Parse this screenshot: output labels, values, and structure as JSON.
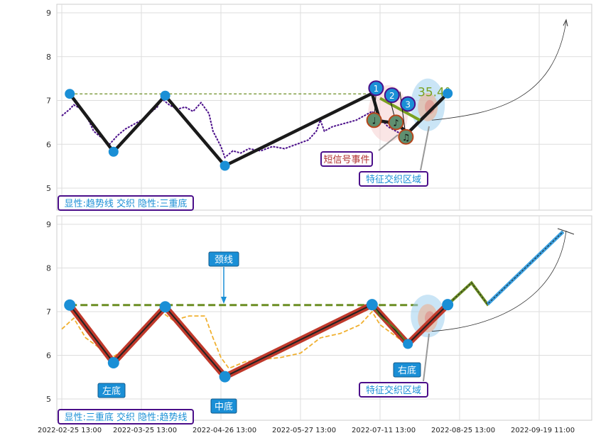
{
  "chart_data": [
    {
      "type": "line",
      "panel": "top",
      "ylim": [
        4.5,
        9.2
      ],
      "yticks": [
        5,
        6,
        7,
        8,
        9
      ],
      "grid": true,
      "xtick_labels": [
        "2022-02-25 13:00",
        "2022-03-25 13:00",
        "2022-04-26 13:00",
        "2022-05-27 13:00",
        "2022-07-11 13:00",
        "2022-08-25 13:00",
        "2022-09-19 11:00"
      ],
      "price_color": "#4b0f8a",
      "price": [
        [
          0,
          6.65
        ],
        [
          2,
          6.8
        ],
        [
          3,
          6.9
        ],
        [
          5,
          6.8
        ],
        [
          7,
          6.5
        ],
        [
          8,
          6.3
        ],
        [
          10,
          6.15
        ],
        [
          12,
          6.0
        ],
        [
          14,
          6.2
        ],
        [
          16,
          6.35
        ],
        [
          18,
          6.45
        ],
        [
          20,
          6.55
        ],
        [
          22,
          6.7
        ],
        [
          24,
          6.85
        ],
        [
          25,
          7.05
        ],
        [
          27,
          6.9
        ],
        [
          29,
          6.8
        ],
        [
          31,
          6.85
        ],
        [
          33,
          6.75
        ],
        [
          35,
          6.95
        ],
        [
          37,
          6.7
        ],
        [
          38,
          6.3
        ],
        [
          40,
          5.95
        ],
        [
          41,
          5.7
        ],
        [
          43,
          5.85
        ],
        [
          45,
          5.8
        ],
        [
          47,
          5.9
        ],
        [
          50,
          5.85
        ],
        [
          53,
          5.95
        ],
        [
          56,
          5.9
        ],
        [
          59,
          6.0
        ],
        [
          62,
          6.1
        ],
        [
          64,
          6.3
        ],
        [
          65,
          6.55
        ],
        [
          66,
          6.3
        ],
        [
          68,
          6.4
        ],
        [
          70,
          6.45
        ],
        [
          72,
          6.5
        ],
        [
          74,
          6.55
        ],
        [
          76,
          6.65
        ],
        [
          78,
          6.75
        ],
        [
          80,
          6.6
        ],
        [
          82,
          6.4
        ],
        [
          84,
          6.3
        ],
        [
          86,
          6.2
        ],
        [
          87,
          6.25
        ]
      ],
      "trendline": [
        [
          2,
          7.15
        ],
        [
          13,
          5.83
        ],
        [
          26,
          7.11
        ],
        [
          41,
          5.51
        ],
        [
          78,
          7.16
        ],
        [
          80,
          6.53
        ],
        [
          84,
          6.48
        ],
        [
          87,
          6.26
        ],
        [
          97,
          7.16
        ]
      ],
      "neckline": 7.15,
      "signals": [
        {
          "label": "1",
          "x": 79,
          "y": 7.28
        },
        {
          "label": "2",
          "x": 83,
          "y": 7.12
        },
        {
          "label": "3",
          "x": 87,
          "y": 6.92
        }
      ],
      "notes": [
        {
          "glyph": "♩",
          "x": 78.5,
          "y": 6.55
        },
        {
          "glyph": "♪",
          "x": 84,
          "y": 6.5
        },
        {
          "glyph": "♫",
          "x": 86.5,
          "y": 6.17
        }
      ],
      "angle_label": "35.4°",
      "annotations": {
        "short_signal": "短信号事件",
        "feature_zone": "特征交织区域",
        "legend": "显性:趋势线 交织 隐性:三重底"
      }
    },
    {
      "type": "line",
      "panel": "bottom",
      "ylim": [
        4.5,
        9.2
      ],
      "yticks": [
        5,
        6,
        7,
        8,
        9
      ],
      "grid": true,
      "price_color": "#f0b030",
      "pattern": [
        [
          2,
          7.15
        ],
        [
          13,
          5.83
        ],
        [
          26,
          7.11
        ],
        [
          41,
          5.51
        ],
        [
          78,
          7.16
        ],
        [
          87,
          6.26
        ],
        [
          97,
          7.16
        ]
      ],
      "projection": [
        [
          97,
          7.16
        ],
        [
          103,
          7.66
        ],
        [
          107,
          7.17
        ],
        [
          126,
          8.83
        ]
      ],
      "neckline": 7.15,
      "annotations": {
        "neckline": "颈线",
        "left_bottom": "左底",
        "middle_bottom": "中底",
        "right_bottom": "右底",
        "feature_zone": "特征交织区域",
        "legend": "显性:三重底 交织 隐性:趋势线"
      }
    }
  ],
  "colors": {
    "pivot": "#1a8fd6",
    "trend": "#1a1a1a",
    "pattern": "#c0392b",
    "neck": "#6b8e23",
    "label_border": "#4b0f8a"
  }
}
